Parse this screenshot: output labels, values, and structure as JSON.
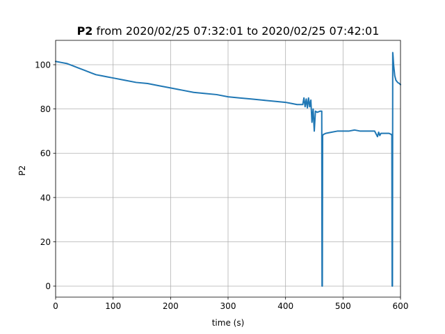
{
  "chart_data": {
    "type": "line",
    "title_bold": "P2",
    "title_rest": " from 2020/02/25 07:32:01 to 2020/02/25 07:42:01",
    "xlabel": "time (s)",
    "ylabel": "P2",
    "xlim": [
      0,
      600
    ],
    "ylim": [
      -5,
      111
    ],
    "xticks": [
      0,
      100,
      200,
      300,
      400,
      500,
      600
    ],
    "yticks": [
      0,
      20,
      40,
      60,
      80,
      100
    ],
    "grid": true,
    "line_color": "#1f77b4",
    "series": [
      {
        "x": [
          0,
          10,
          20,
          30,
          40,
          50,
          60,
          70,
          80,
          90,
          100,
          120,
          140,
          160,
          180,
          200,
          220,
          240,
          260,
          280,
          300,
          320,
          340,
          360,
          380,
          400,
          410,
          420,
          430,
          432,
          434,
          436,
          438,
          440,
          442,
          444,
          446,
          448,
          450,
          452,
          455,
          460,
          463,
          463.5,
          464,
          464.5,
          466,
          470,
          480,
          490,
          500,
          510,
          520,
          530,
          540,
          550,
          555,
          560,
          562,
          564,
          566,
          570,
          575,
          580,
          584,
          585,
          585.5,
          586,
          586.5,
          587,
          588,
          590,
          592,
          595,
          598,
          600
        ],
        "y": [
          101.5,
          101,
          100.5,
          99.5,
          98.5,
          97.5,
          96.5,
          95.5,
          95,
          94.5,
          94,
          93,
          92,
          91.5,
          90.5,
          89.5,
          88.5,
          87.5,
          87,
          86.5,
          85.5,
          85,
          84.5,
          84,
          83.5,
          83,
          82.5,
          82,
          82,
          85,
          81,
          84.5,
          80.5,
          85,
          81,
          84,
          74,
          80,
          70,
          79,
          78.5,
          79,
          79,
          0,
          0,
          68,
          68.5,
          69,
          69.5,
          70,
          70,
          70,
          70.5,
          70,
          70,
          70,
          70,
          67.5,
          69.5,
          68,
          69,
          69,
          69,
          69,
          68.5,
          68,
          0,
          0,
          105.5,
          104,
          100,
          95,
          93,
          92,
          91.5,
          91
        ]
      }
    ]
  }
}
